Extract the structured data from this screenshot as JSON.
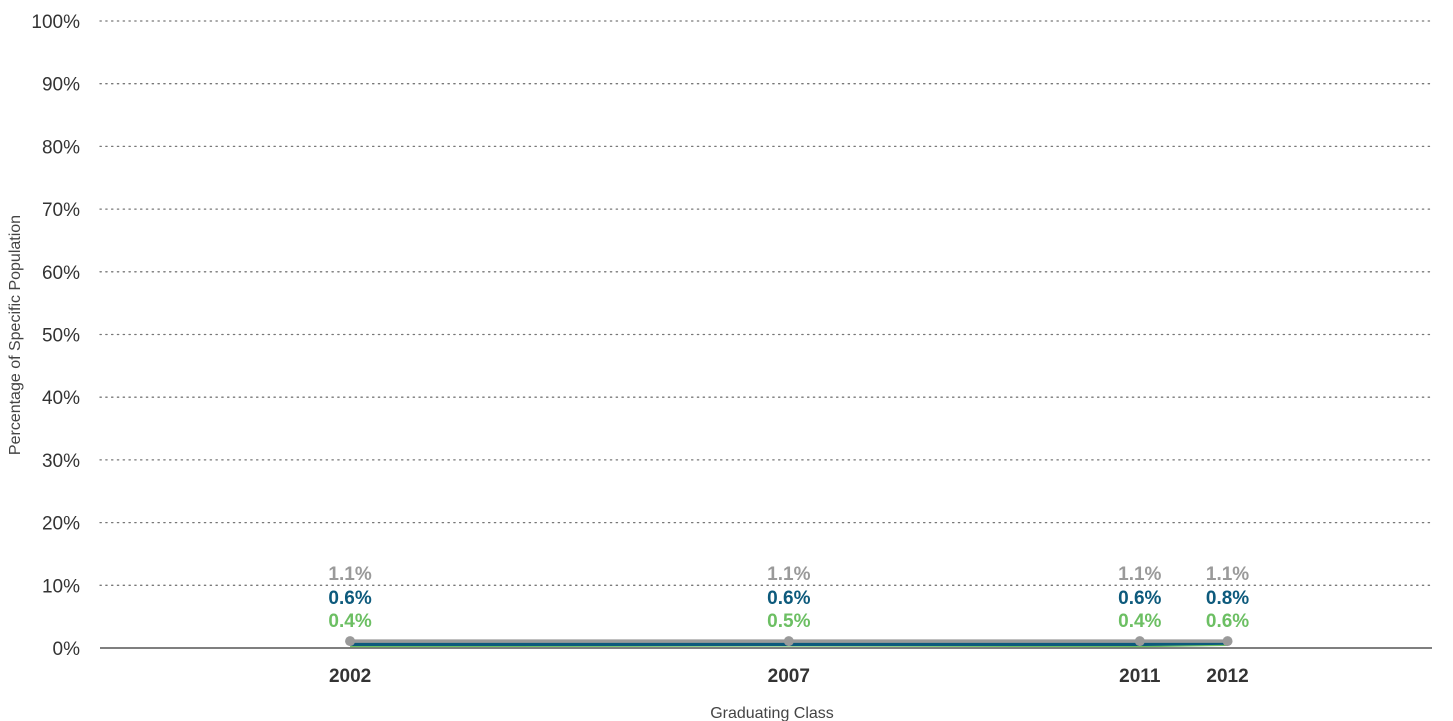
{
  "chart_data": {
    "type": "line",
    "title": "",
    "xlabel": "Graduating Class",
    "ylabel": "Percentage of Specific Population",
    "ylim": [
      0,
      100
    ],
    "yticks": [
      "0%",
      "10%",
      "20%",
      "30%",
      "40%",
      "50%",
      "60%",
      "70%",
      "80%",
      "90%",
      "100%"
    ],
    "categories": [
      "2002",
      "2007",
      "2011",
      "2012"
    ],
    "x": [
      2002,
      2007,
      2011,
      2012
    ],
    "grid": "horizontal dotted",
    "series": [
      {
        "values": [
          1.1,
          1.1,
          1.1,
          1.1
        ],
        "labels": [
          "1.1%",
          "1.1%",
          "1.1%",
          "1.1%"
        ],
        "color": "#9a9a9a"
      },
      {
        "values": [
          0.6,
          0.6,
          0.6,
          0.8
        ],
        "labels": [
          "0.6%",
          "0.6%",
          "0.6%",
          "0.8%"
        ],
        "color": "#0d5a7c"
      },
      {
        "values": [
          0.4,
          0.5,
          0.4,
          0.6
        ],
        "labels": [
          "0.4%",
          "0.5%",
          "0.4%",
          "0.6%"
        ],
        "color": "#6cbf63"
      }
    ]
  }
}
